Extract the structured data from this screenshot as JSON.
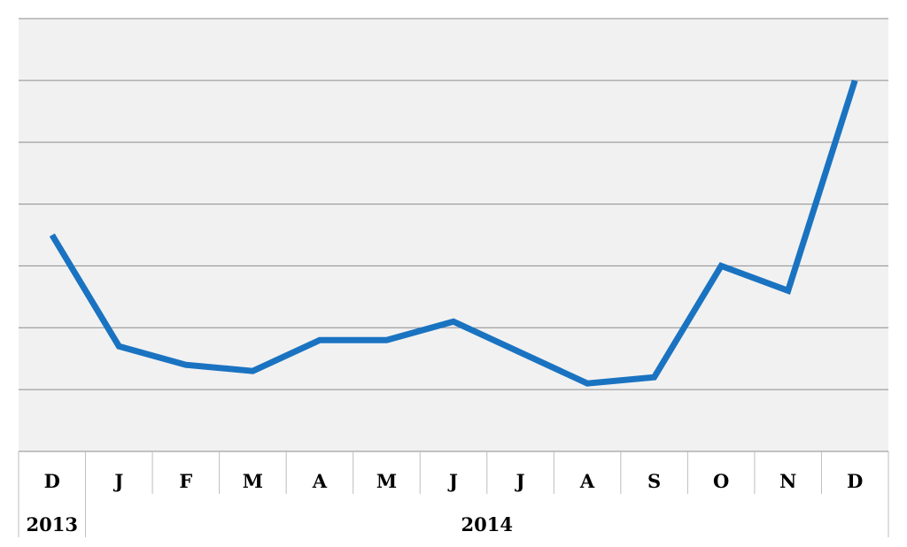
{
  "chart_data": {
    "type": "line",
    "title": "",
    "xlabel": "",
    "ylabel": "",
    "grid": true,
    "ylim": [
      0,
      7
    ],
    "x": [
      "D",
      "J",
      "F",
      "M",
      "A",
      "M",
      "J",
      "J",
      "A",
      "S",
      "O",
      "N",
      "D"
    ],
    "year_groups": [
      {
        "label": "2013",
        "start": 0,
        "end": 0
      },
      {
        "label": "2014",
        "start": 1,
        "end": 12
      }
    ],
    "series": [
      {
        "color": "#1a73c1",
        "values": [
          3.5,
          1.7,
          1.4,
          1.3,
          1.8,
          1.8,
          2.1,
          1.6,
          1.1,
          1.2,
          3.0,
          2.6,
          6.0
        ]
      }
    ]
  }
}
